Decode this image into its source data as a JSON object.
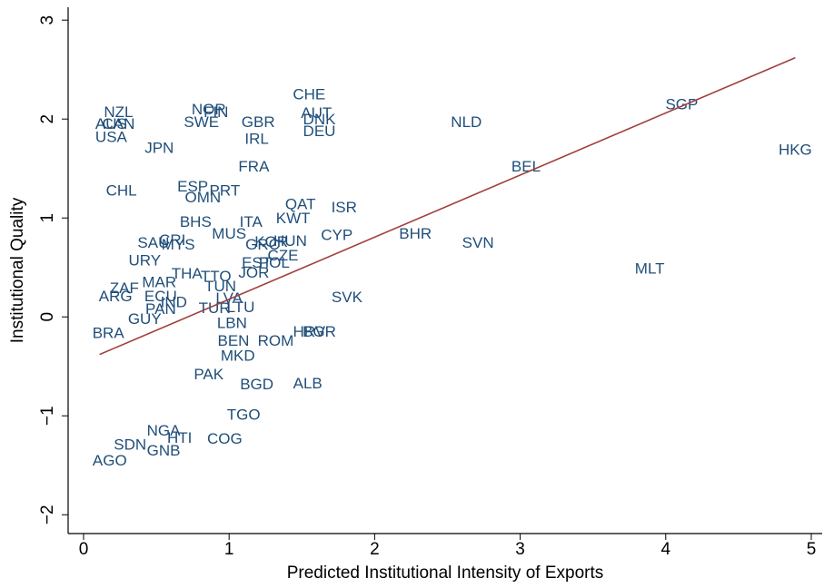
{
  "chart_data": {
    "type": "scatter",
    "x_label": "Predicted Institutional Intensity of Exports",
    "y_label": "Institutional Quality",
    "xlim": [
      -0.106,
      5.075
    ],
    "ylim": [
      -2.19,
      3.13
    ],
    "xticks": [
      0,
      1,
      2,
      3,
      4,
      5
    ],
    "yticks": [
      {
        "value": -2,
        "label": "−2"
      },
      {
        "value": -1,
        "label": "−1"
      },
      0,
      1,
      2,
      3
    ],
    "point_color": "#1f4e79",
    "labels": [
      "CHE",
      "NZL",
      "NOR",
      "FIN",
      "AUT",
      "SGP",
      "AUS",
      "CAN",
      "SWE",
      "GBR",
      "DNK",
      "NLD",
      "DEU",
      "USA",
      "IRL",
      "JPN",
      "HKG",
      "FRA",
      "BEL",
      "CHL",
      "ESP",
      "PRT",
      "OMN",
      "QAT",
      "ISR",
      "KWT",
      "BHS",
      "ITA",
      "MUS",
      "CYP",
      "BHR",
      "SVN",
      "SAU",
      "CRI",
      "MYS",
      "KOR",
      "GRC",
      "HUN",
      "CZE",
      "POL",
      "EST",
      "URY",
      "JOR",
      "MLT",
      "THA",
      "TTO",
      "MAR",
      "TUN",
      "ZAF",
      "ARG",
      "ECU",
      "SVK",
      "LVA",
      "IND",
      "PAN",
      "TUR",
      "LTU",
      "GUY",
      "LBN",
      "BRA",
      "HRV",
      "BGR",
      "ROM",
      "BEN",
      "MKD",
      "PAK",
      "BGD",
      "ALB",
      "TGO",
      "COG",
      "HTI",
      "SDN",
      "GNB",
      "AGO",
      "NGA"
    ],
    "x": [
      1.55,
      0.24,
      0.86,
      0.91,
      1.6,
      4.11,
      0.19,
      0.24,
      0.81,
      1.2,
      1.62,
      2.63,
      1.62,
      0.19,
      1.19,
      0.52,
      4.89,
      1.17,
      3.04,
      0.26,
      0.75,
      0.97,
      0.82,
      1.49,
      1.79,
      1.44,
      0.77,
      1.15,
      1.0,
      1.74,
      2.28,
      2.71,
      0.48,
      0.61,
      0.65,
      1.29,
      1.23,
      1.42,
      1.37,
      1.31,
      1.19,
      0.42,
      1.17,
      3.89,
      0.71,
      0.91,
      0.52,
      0.94,
      0.28,
      0.22,
      0.53,
      1.81,
      1.0,
      0.62,
      0.53,
      0.9,
      1.08,
      0.42,
      1.02,
      0.17,
      1.55,
      1.62,
      1.32,
      1.03,
      1.06,
      0.86,
      1.19,
      1.54,
      1.1,
      0.97,
      0.66,
      0.32,
      0.55,
      0.18,
      0.55
    ],
    "values": [
      2.24,
      2.06,
      2.09,
      2.06,
      2.05,
      2.14,
      1.94,
      1.94,
      1.96,
      1.96,
      1.99,
      1.96,
      1.87,
      1.81,
      1.79,
      1.7,
      1.68,
      1.51,
      1.51,
      1.27,
      1.31,
      1.27,
      1.2,
      1.13,
      1.1,
      0.99,
      0.95,
      0.95,
      0.83,
      0.82,
      0.83,
      0.74,
      0.74,
      0.77,
      0.72,
      0.75,
      0.72,
      0.76,
      0.61,
      0.54,
      0.54,
      0.56,
      0.44,
      0.48,
      0.43,
      0.4,
      0.34,
      0.3,
      0.28,
      0.2,
      0.2,
      0.19,
      0.18,
      0.14,
      0.07,
      0.08,
      0.09,
      -0.03,
      -0.07,
      -0.17,
      -0.16,
      -0.16,
      -0.25,
      -0.25,
      -0.4,
      -0.59,
      -0.69,
      -0.68,
      -1.0,
      -1.24,
      -1.23,
      -1.3,
      -1.36,
      -1.46,
      -1.16
    ],
    "fit_line": {
      "color": "#a0403e",
      "x": [
        0.11,
        4.89
      ],
      "values": [
        -0.38,
        2.62
      ]
    }
  }
}
